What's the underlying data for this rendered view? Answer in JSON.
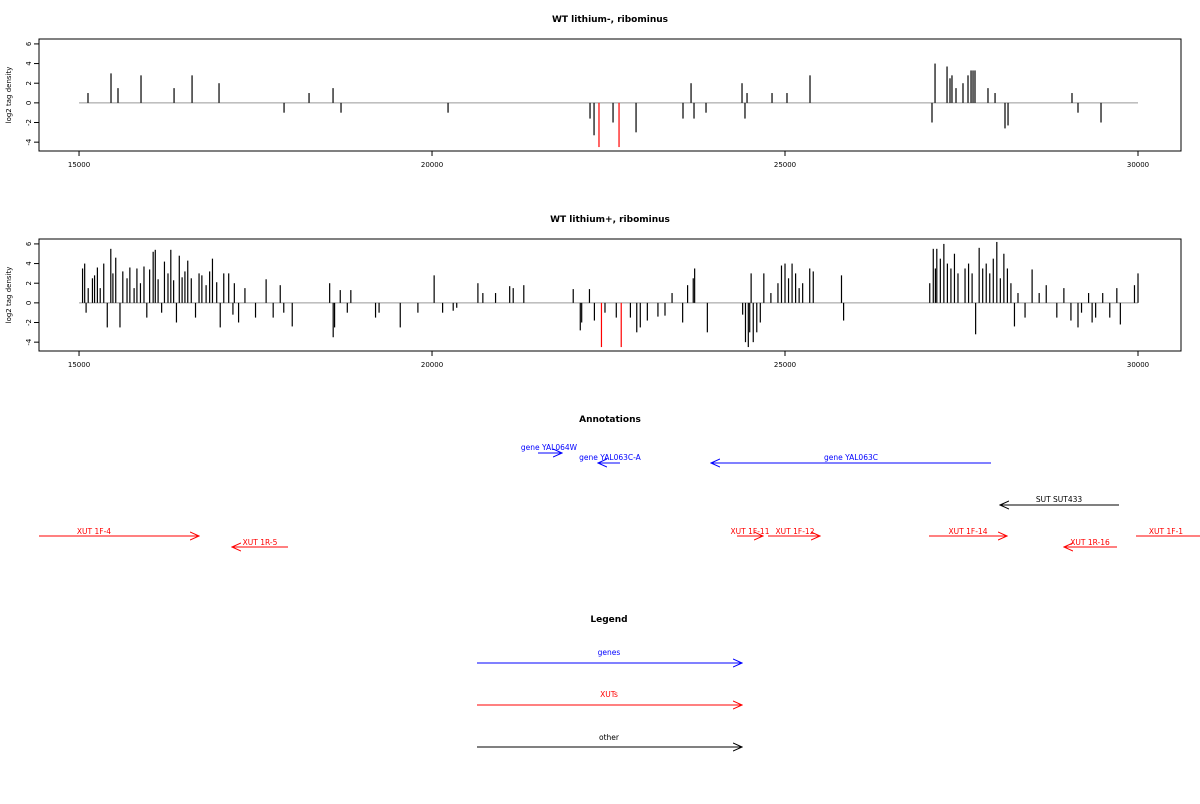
{
  "chart_data": [
    {
      "type": "spike",
      "title": "WT lithium-, ribominus",
      "ylabel": "log2 tag density",
      "xlim": [
        14433,
        30609
      ],
      "ylim": [
        -4.9,
        6.5
      ],
      "xticks": [
        15000,
        20000,
        25000,
        30000
      ],
      "yticks": [
        -4,
        -2,
        0,
        2,
        4,
        6
      ],
      "series": [
        {
          "color": "#000000",
          "x": [
            15127,
            15453,
            15552,
            15878,
            16346,
            16601,
            16983,
            17904,
            18258,
            18598,
            18711,
            20227,
            22238,
            22295,
            22564,
            22890,
            23555,
            23669,
            23711,
            23881,
            24391,
            24433,
            24462,
            24816,
            25028,
            25354,
            27082,
            27125,
            27295,
            27337,
            27365,
            27422,
            27521,
            27592,
            27635,
            27663,
            27691,
            27875,
            27975,
            28116,
            28159,
            29065,
            29150,
            29476
          ],
          "values": [
            1,
            3,
            1.5,
            2.8,
            1.5,
            2.8,
            2,
            -1,
            1,
            1.5,
            -1,
            -1,
            -1.6,
            -3.3,
            -2,
            -3,
            -1.6,
            2,
            -1.6,
            -1,
            2,
            -1.6,
            1,
            1,
            1,
            2.8,
            -2,
            4,
            3.7,
            2.5,
            2.8,
            1.5,
            2,
            2.8,
            3.3,
            3.3,
            3.3,
            1.5,
            1,
            -2.6,
            -2.3,
            1,
            -1,
            -2
          ]
        },
        {
          "color": "#ff0000",
          "x": [
            22365,
            22649
          ],
          "values": [
            -4.5,
            -4.5
          ]
        }
      ]
    },
    {
      "type": "spike",
      "title": "WT lithium+, ribominus",
      "ylabel": "log2 tag density",
      "xlim": [
        14433,
        30609
      ],
      "ylim": [
        -4.9,
        6.5
      ],
      "xticks": [
        15000,
        20000,
        25000,
        30000
      ],
      "yticks": [
        -4,
        -2,
        0,
        2,
        4,
        6
      ],
      "series": [
        {
          "color": "#000000",
          "x": [
            15050,
            15080,
            15100,
            15130,
            15190,
            15220,
            15260,
            15300,
            15350,
            15400,
            15450,
            15480,
            15520,
            15580,
            15620,
            15680,
            15720,
            15780,
            15820,
            15870,
            15920,
            15960,
            16000,
            16050,
            16080,
            16120,
            16170,
            16210,
            16260,
            16300,
            16340,
            16380,
            16420,
            16460,
            16500,
            16540,
            16590,
            16650,
            16700,
            16740,
            16800,
            16850,
            16890,
            16950,
            17000,
            17050,
            17120,
            17180,
            17200,
            17260,
            17350,
            17500,
            17650,
            17750,
            17850,
            17900,
            18020,
            18550,
            18600,
            18620,
            18700,
            18800,
            18850,
            19200,
            19250,
            19550,
            19800,
            20030,
            20150,
            20300,
            20350,
            20650,
            20720,
            20900,
            21100,
            21150,
            21300,
            22000,
            22100,
            22120,
            22230,
            22300,
            22450,
            22610,
            22810,
            22900,
            22950,
            23050,
            23200,
            23300,
            23400,
            23550,
            23620,
            23700,
            23720,
            23900,
            24400,
            24440,
            24480,
            24500,
            24520,
            24550,
            24600,
            24650,
            24700,
            24800,
            24900,
            24950,
            25000,
            25050,
            25100,
            25150,
            25200,
            25250,
            25350,
            25400,
            25800,
            25830,
            27050,
            27100,
            27130,
            27150,
            27200,
            27250,
            27300,
            27350,
            27400,
            27450,
            27550,
            27600,
            27650,
            27700,
            27750,
            27800,
            27850,
            27900,
            27950,
            28000,
            28050,
            28100,
            28150,
            28200,
            28250,
            28300,
            28400,
            28500,
            28600,
            28700,
            28850,
            28950,
            29050,
            29150,
            29200,
            29300,
            29350,
            29400,
            29500,
            29600,
            29700,
            29750,
            29950,
            30000
          ],
          "values": [
            3.5,
            4,
            -1,
            1.5,
            2.5,
            2.8,
            3.6,
            1.5,
            4,
            -2.5,
            5.5,
            3,
            4.6,
            -2.5,
            3.2,
            2.5,
            3.6,
            1.5,
            3.5,
            2,
            3.7,
            -1.5,
            3.4,
            5.2,
            5.4,
            2.4,
            -1,
            4.2,
            3,
            5.4,
            2.3,
            -2,
            4.8,
            2.6,
            3.2,
            4.3,
            2.5,
            -1.5,
            3,
            2.8,
            1.8,
            3.2,
            4.5,
            2.1,
            -2.5,
            3,
            3,
            -1.2,
            2,
            -2,
            1.5,
            -1.5,
            2.4,
            -1.5,
            1.8,
            -1,
            -2.4,
            2,
            -3.5,
            -2.5,
            1.3,
            -1,
            1.3,
            -1.5,
            -1,
            -2.5,
            -1,
            2.8,
            -1,
            -0.8,
            -0.5,
            2,
            1,
            1,
            1.7,
            1.5,
            1.8,
            1.4,
            -2.8,
            -2,
            1.4,
            -1.8,
            -1,
            -1.5,
            -1.5,
            -3,
            -2.5,
            -1.8,
            -1.4,
            -1.3,
            1,
            -2,
            1.8,
            2.5,
            3.5,
            -3,
            -1.2,
            -4,
            -4.5,
            -3,
            3,
            -4,
            -3,
            -2,
            3,
            1,
            2,
            3.8,
            4,
            2.5,
            4,
            3,
            1.5,
            2,
            3.5,
            3.2,
            2.8,
            -1.8,
            2,
            5.5,
            3.5,
            5.5,
            4.5,
            6,
            4,
            3.5,
            5,
            3,
            3.5,
            4,
            3,
            -3.2,
            5.6,
            3.5,
            4,
            3,
            4.5,
            6.2,
            2.5,
            5,
            3.5,
            2,
            -2.4,
            1,
            -1.5,
            3.4,
            1,
            1.8,
            -1.5,
            1.5,
            -1.8,
            -2.5,
            -1,
            1,
            -2,
            -1.5,
            1,
            -1.5,
            1.5,
            -2.2,
            1.8,
            3
          ]
        },
        {
          "color": "#ff0000",
          "x": [
            22400,
            22680
          ],
          "values": [
            -4.5,
            -4.5
          ]
        }
      ]
    }
  ],
  "annotations": {
    "title": "Annotations",
    "features": [
      "gene YAL064W",
      "gene YAL063C-A",
      "gene YAL063C",
      "SUT SUT433",
      "XUT 1F-4",
      "XUT 1R-5",
      "XUT 1F-11",
      "XUT 1F-12",
      "XUT 1F-14",
      "XUT 1R-16",
      "XUT 1F-1"
    ]
  },
  "legend": {
    "title": "Legend",
    "items": [
      "genes",
      "XUTs",
      "other"
    ]
  }
}
